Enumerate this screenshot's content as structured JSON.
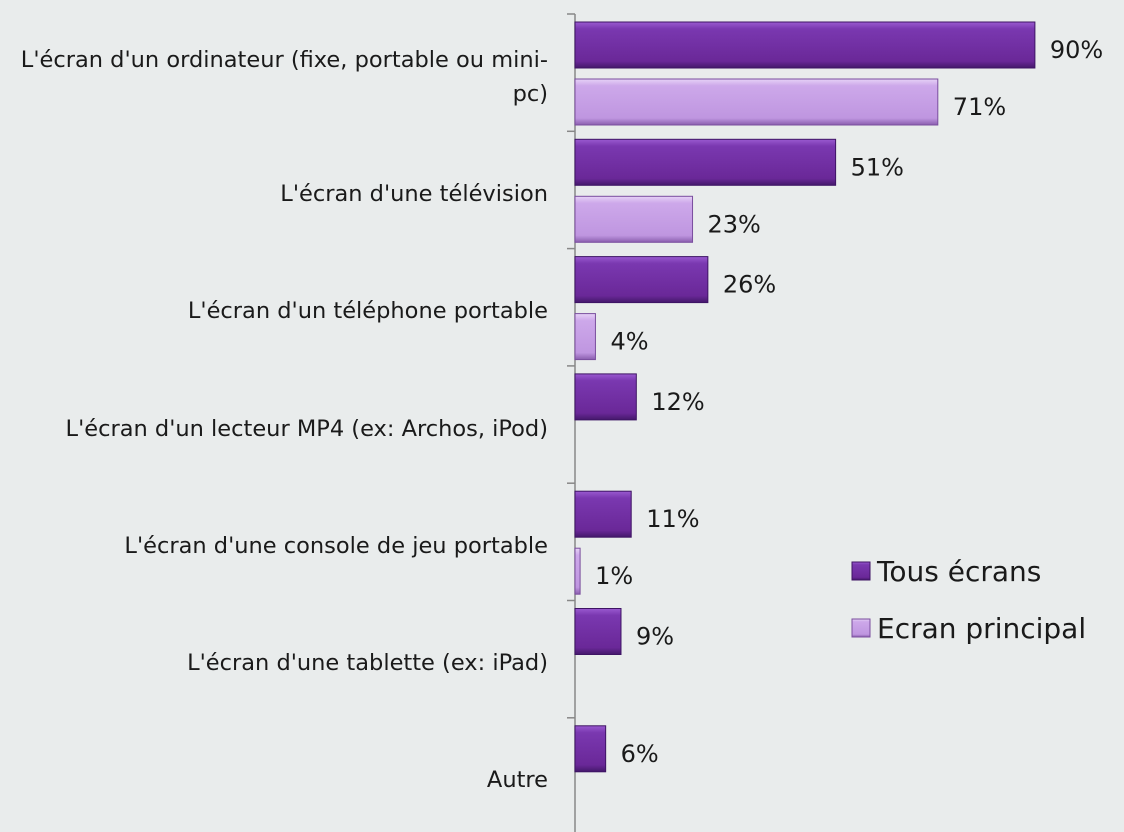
{
  "chart_data": {
    "type": "bar",
    "orientation": "horizontal",
    "categories": [
      "L'écran d'un ordinateur (fixe, portable ou mini-pc)",
      "L'écran d'une télévision",
      "L'écran d'un téléphone portable",
      "L'écran d'un lecteur MP4 (ex: Archos, iPod)",
      "L'écran d'une console de jeu portable",
      "L'écran d'une tablette (ex: iPad)",
      "Autre"
    ],
    "series": [
      {
        "name": "Tous écrans",
        "color": "#7030a0",
        "values": [
          90,
          51,
          26,
          12,
          11,
          9,
          6
        ],
        "value_labels": [
          "90%",
          "51%",
          "26%",
          "12%",
          "11%",
          "9%",
          "6%"
        ]
      },
      {
        "name": "Ecran principal",
        "color": "#c49ee4",
        "values": [
          71,
          23,
          4,
          null,
          1,
          null,
          null
        ],
        "value_labels": [
          "71%",
          "23%",
          "4%",
          null,
          "1%",
          null,
          null
        ]
      }
    ],
    "xlim": [
      0,
      100
    ],
    "legend": "right"
  }
}
